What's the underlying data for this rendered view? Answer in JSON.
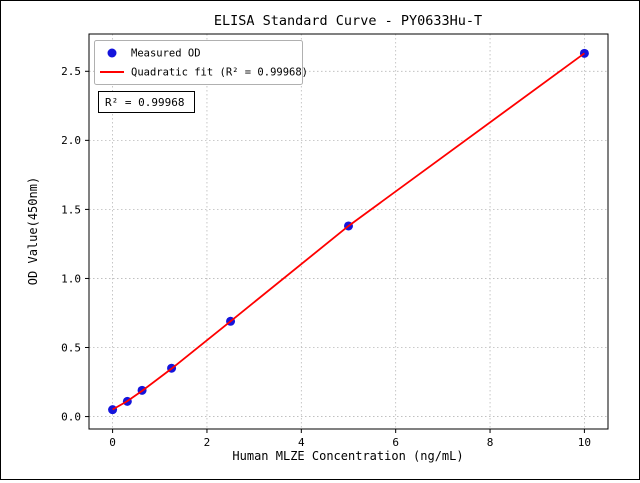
{
  "chart_data": {
    "type": "scatter",
    "title": "ELISA Standard Curve - PY0633Hu-T",
    "xlabel": "Human MLZE Concentration (ng/mL)",
    "ylabel": "OD Value(450nm)",
    "xlim": [
      -0.5,
      10.5
    ],
    "ylim": [
      -0.09,
      2.77
    ],
    "xticks": [
      0,
      2,
      4,
      6,
      8,
      10
    ],
    "xtick_labels": [
      "0",
      "2",
      "4",
      "6",
      "8",
      "10"
    ],
    "yticks": [
      0.0,
      0.5,
      1.0,
      1.5,
      2.0,
      2.5
    ],
    "ytick_labels": [
      "0.0",
      "0.5",
      "1.0",
      "1.5",
      "2.0",
      "2.5"
    ],
    "grid": true,
    "series": [
      {
        "name": "Measured OD",
        "type": "scatter",
        "color": "#1414dc",
        "x": [
          0,
          0.3125,
          0.625,
          1.25,
          2.5,
          5,
          10
        ],
        "y": [
          0.05,
          0.11,
          0.19,
          0.35,
          0.69,
          1.38,
          2.63
        ]
      },
      {
        "name": "Quadratic fit (R² = 0.99968)",
        "type": "line",
        "color": "#ff0000",
        "x": [
          0,
          0.3125,
          0.625,
          1.25,
          2.5,
          5,
          10
        ],
        "y": [
          0.051,
          0.112,
          0.186,
          0.347,
          0.69,
          1.38,
          2.63
        ]
      }
    ],
    "legend": {
      "position": "upper left",
      "entries": [
        "Measured OD",
        "Quadratic fit (R² = 0.99968)"
      ]
    },
    "annotation": "R² = 0.99968",
    "colors": {
      "point": "#1414dc",
      "line": "#ff0000",
      "grid": "#b8b8b8",
      "axis": "#000000",
      "legend_border": "#b0b0b0"
    }
  }
}
